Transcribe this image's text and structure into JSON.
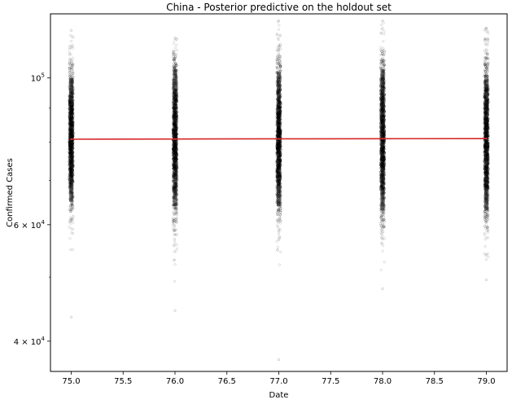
{
  "chart_data": {
    "type": "scatter",
    "title": "China - Posterior predictive on the holdout set",
    "xlabel": "Date",
    "ylabel": "Confirmed Cases",
    "xlim": [
      74.8,
      79.2
    ],
    "ylim": [
      36000,
      125000
    ],
    "y_scale": "log",
    "grid": false,
    "x_ticks": [
      75.0,
      75.5,
      76.0,
      76.5,
      77.0,
      77.5,
      78.0,
      78.5,
      79.0
    ],
    "x_tick_labels": [
      "75.0",
      "75.5",
      "76.0",
      "76.5",
      "77.0",
      "77.5",
      "78.0",
      "78.5",
      "79.0"
    ],
    "y_major_ticks": [
      {
        "value": 100000,
        "base": "10",
        "exp": "5",
        "mult": ""
      },
      {
        "value": 60000,
        "base": "10",
        "exp": "4",
        "mult": "6 × "
      },
      {
        "value": 40000,
        "base": "10",
        "exp": "4",
        "mult": "4 × "
      }
    ],
    "y_minor_ticks": [
      50000,
      70000,
      80000,
      90000
    ],
    "observed": {
      "color": "#d62728",
      "x": [
        75,
        76,
        77,
        78,
        79
      ],
      "y": [
        80800,
        80850,
        80900,
        80940,
        80960
      ]
    },
    "samples": {
      "color": "#000000",
      "x": [
        75,
        76,
        77,
        78,
        79
      ],
      "center": [
        80700,
        80800,
        80900,
        80950,
        81000
      ],
      "dense_range": [
        [
          65000,
          100000
        ],
        [
          64000,
          103000
        ],
        [
          64000,
          102000
        ],
        [
          63000,
          103000
        ],
        [
          63000,
          101000
        ]
      ],
      "extent": [
        [
          43500,
          118000
        ],
        [
          44500,
          115000
        ],
        [
          37500,
          122000
        ],
        [
          48000,
          122000
        ],
        [
          49500,
          119000
        ]
      ]
    }
  }
}
